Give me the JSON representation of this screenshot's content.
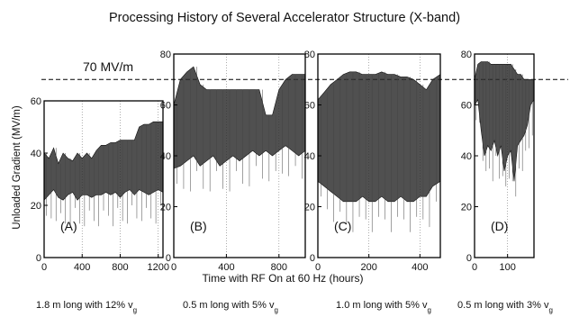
{
  "figure": {
    "title": "Processing History of Several Accelerator Structure (X-band)",
    "ylabel": "Unloaded Gradient (MV/m)",
    "xlabel": "Time with RF On at 60 Hz (hours)",
    "reference_label": "70 MV/m",
    "reference_value": 70
  },
  "chart_data": [
    {
      "type": "area",
      "panel": "A",
      "label": "(A)",
      "caption": "1.8 m long with 12% v",
      "caption_sub": "g",
      "xlim": [
        0,
        1250
      ],
      "ylim": [
        0,
        60
      ],
      "xticks": [
        0,
        400,
        800,
        1200
      ],
      "yticks": [
        0,
        20,
        40,
        60
      ],
      "series": [
        {
          "x": [
            0,
            50,
            100,
            150,
            200,
            250,
            300,
            350,
            400,
            450,
            500,
            550,
            600,
            650,
            700,
            750,
            800,
            850,
            900,
            950,
            1000,
            1050,
            1100,
            1150,
            1200,
            1250
          ],
          "max": [
            40,
            38,
            42,
            36,
            40,
            38,
            37,
            40,
            38,
            40,
            38,
            41,
            43,
            43,
            44,
            44,
            45,
            45,
            45,
            45,
            50,
            51,
            51,
            52,
            52,
            52
          ],
          "min": [
            22,
            24,
            26,
            23,
            22,
            24,
            25,
            22,
            24,
            24,
            23,
            24,
            24,
            25,
            24,
            25,
            23,
            25,
            26,
            24,
            26,
            25,
            24,
            25,
            26,
            25
          ]
        }
      ]
    },
    {
      "type": "area",
      "panel": "B",
      "label": "(B)",
      "caption": "0.5 m long with 5% v",
      "caption_sub": "g",
      "xlim": [
        0,
        1000
      ],
      "ylim": [
        0,
        80
      ],
      "xticks": [
        0,
        400,
        800
      ],
      "yticks": [
        0,
        20,
        40,
        60,
        80
      ],
      "series": [
        {
          "x": [
            0,
            50,
            100,
            150,
            200,
            250,
            300,
            350,
            400,
            450,
            500,
            550,
            600,
            650,
            700,
            750,
            800,
            850,
            900,
            950,
            1000
          ],
          "max": [
            60,
            70,
            73,
            75,
            68,
            66,
            66,
            66,
            66,
            66,
            66,
            66,
            66,
            66,
            56,
            56,
            66,
            70,
            72,
            72,
            72
          ],
          "min": [
            35,
            36,
            38,
            40,
            36,
            38,
            40,
            36,
            38,
            40,
            38,
            40,
            42,
            40,
            42,
            40,
            42,
            44,
            42,
            40,
            42
          ]
        }
      ]
    },
    {
      "type": "area",
      "panel": "C",
      "label": "(C)",
      "caption": "1.0 m long with 5% v",
      "caption_sub": "g",
      "xlim": [
        0,
        480
      ],
      "ylim": [
        0,
        80
      ],
      "xticks": [
        0,
        200,
        400
      ],
      "yticks": [
        0,
        20,
        40,
        60,
        80
      ],
      "series": [
        {
          "x": [
            0,
            25,
            50,
            75,
            100,
            125,
            150,
            175,
            200,
            225,
            250,
            275,
            300,
            325,
            350,
            375,
            400,
            425,
            450,
            480
          ],
          "max": [
            62,
            65,
            68,
            70,
            72,
            73,
            73,
            72,
            72,
            72,
            73,
            72,
            72,
            71,
            71,
            70,
            68,
            66,
            70,
            72
          ],
          "min": [
            30,
            28,
            26,
            24,
            22,
            22,
            22,
            24,
            22,
            22,
            24,
            22,
            22,
            24,
            22,
            22,
            24,
            24,
            28,
            30
          ]
        }
      ]
    },
    {
      "type": "area",
      "panel": "D",
      "label": "(D)",
      "caption": "0.5 m long with 3% v",
      "caption_sub": "g",
      "xlim": [
        0,
        180
      ],
      "ylim": [
        0,
        80
      ],
      "xticks": [
        0,
        100
      ],
      "yticks": [
        0,
        20,
        40,
        60,
        80
      ],
      "series": [
        {
          "x": [
            0,
            10,
            20,
            30,
            40,
            50,
            60,
            70,
            80,
            90,
            100,
            110,
            120,
            130,
            140,
            150,
            160,
            170,
            180
          ],
          "max": [
            70,
            76,
            77,
            77,
            77,
            76,
            76,
            76,
            76,
            76,
            76,
            76,
            74,
            72,
            72,
            70,
            70,
            70,
            70
          ],
          "min": [
            60,
            62,
            50,
            40,
            44,
            42,
            46,
            40,
            44,
            34,
            40,
            42,
            30,
            44,
            46,
            48,
            52,
            60,
            62
          ]
        }
      ]
    }
  ]
}
